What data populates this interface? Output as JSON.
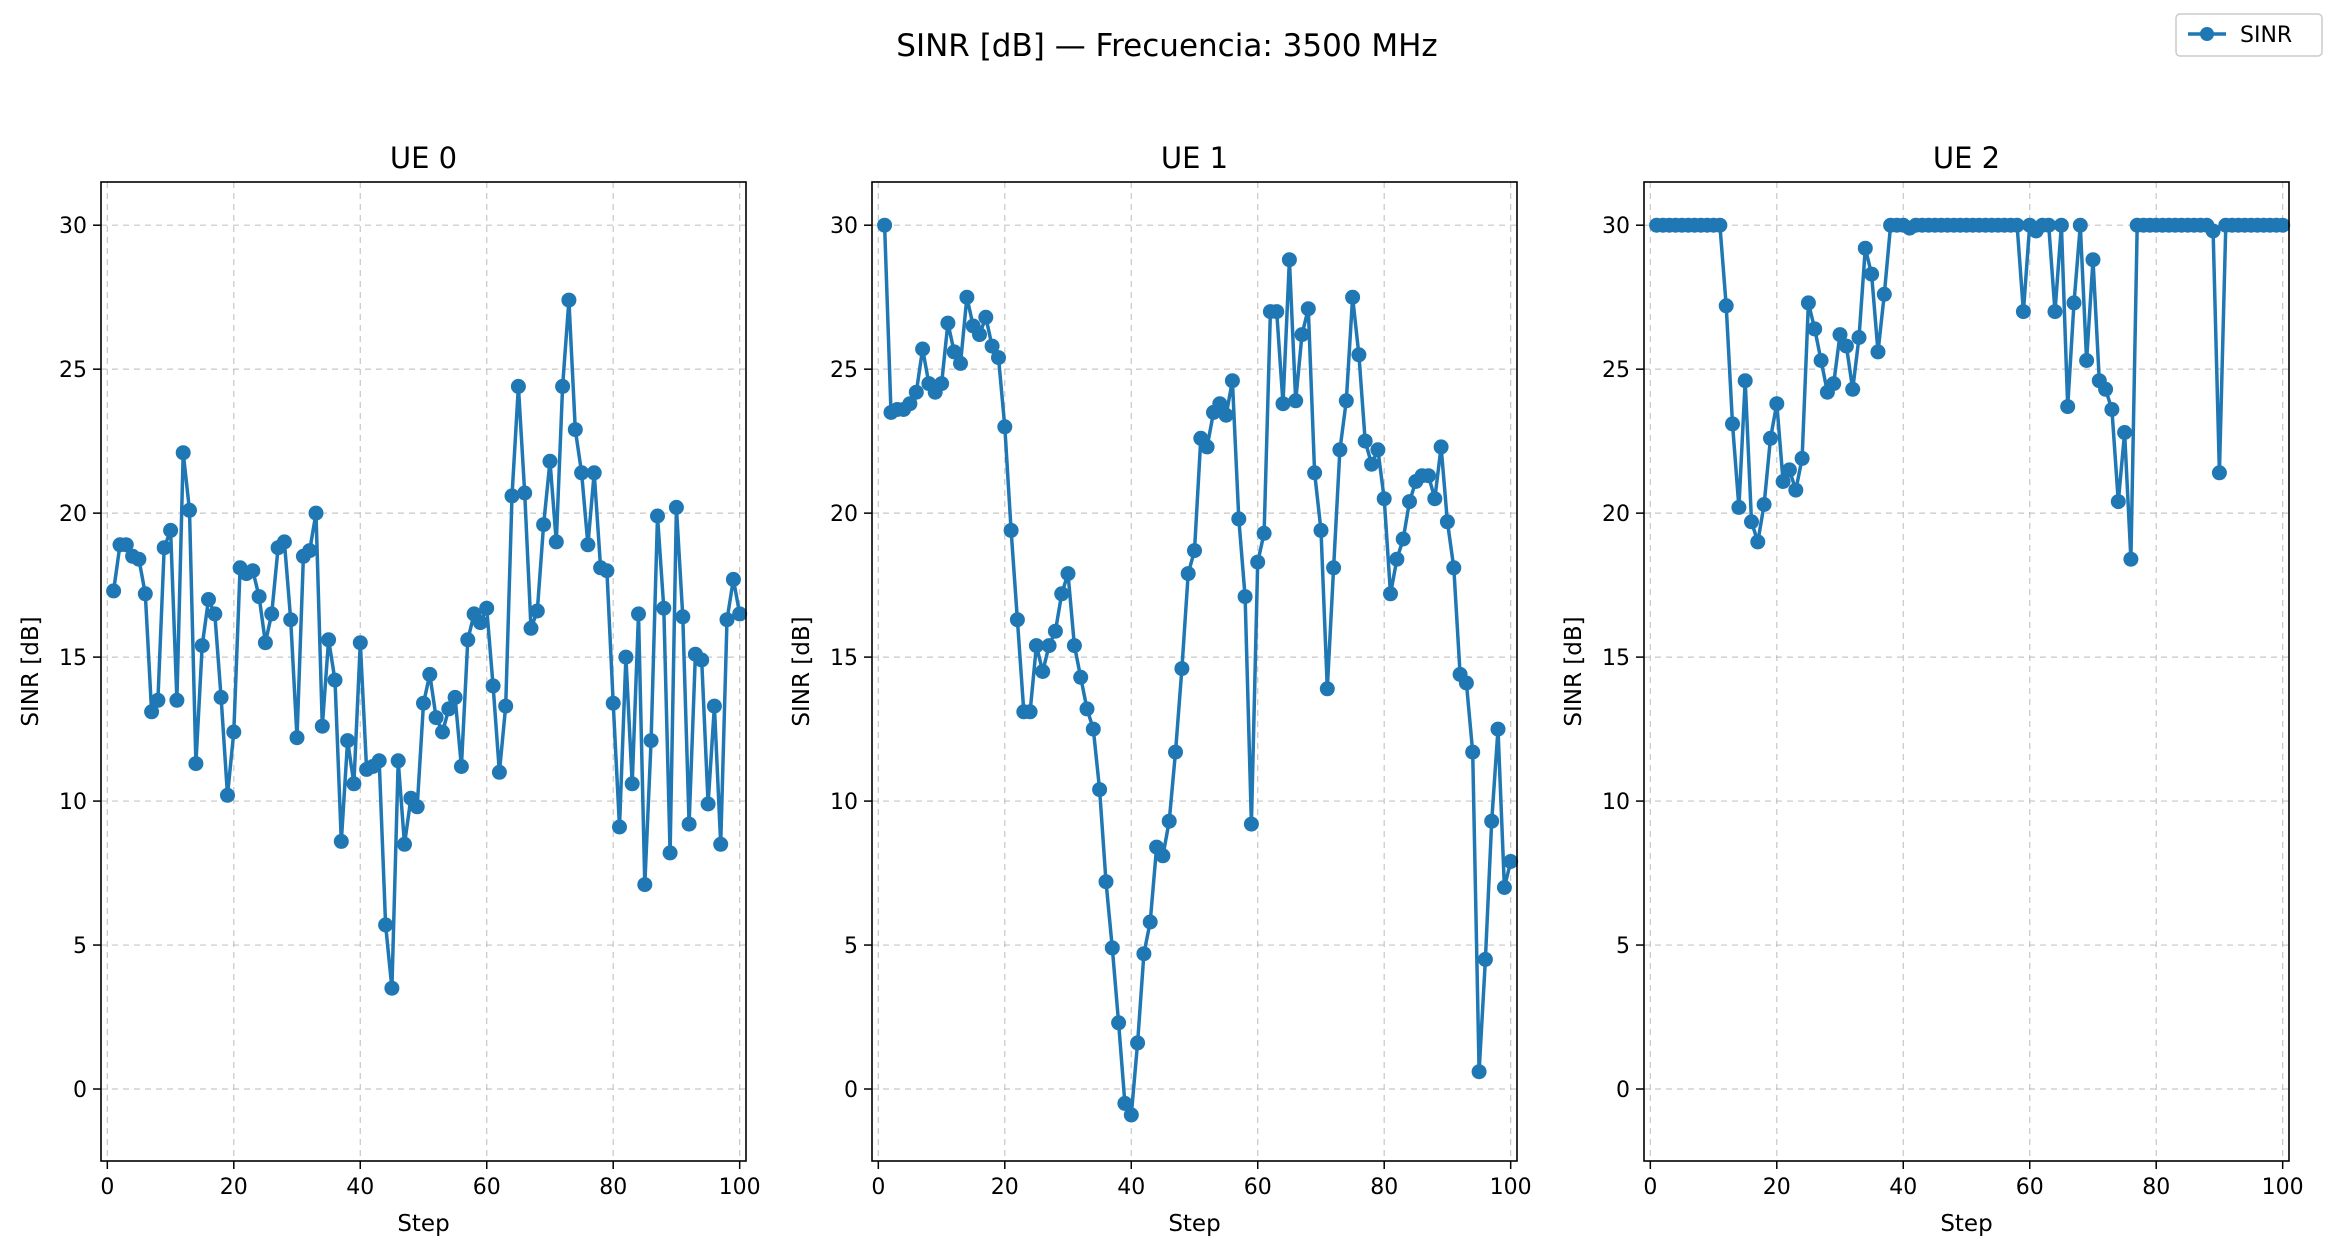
{
  "figure": {
    "title": "SINR [dB] — Frecuencia: 3500 MHz",
    "legend": {
      "label": "SINR",
      "placement": "top-right"
    },
    "line_color": "#1f77b4"
  },
  "chart_data": [
    {
      "type": "line",
      "title": "UE 0",
      "xlabel": "Step",
      "ylabel": "SINR [dB]",
      "xlim": [
        -1,
        101
      ],
      "ylim": [
        -2.5,
        31.5
      ],
      "xticks": [
        0,
        20,
        40,
        60,
        80,
        100
      ],
      "yticks": [
        0,
        5,
        10,
        15,
        20,
        25,
        30
      ],
      "grid": true,
      "series": [
        {
          "name": "SINR",
          "x": [
            1,
            2,
            3,
            4,
            5,
            6,
            7,
            8,
            9,
            10,
            11,
            12,
            13,
            14,
            15,
            16,
            17,
            18,
            19,
            20,
            21,
            22,
            23,
            24,
            25,
            26,
            27,
            28,
            29,
            30,
            31,
            32,
            33,
            34,
            35,
            36,
            37,
            38,
            39,
            40,
            41,
            42,
            43,
            44,
            45,
            46,
            47,
            48,
            49,
            50,
            51,
            52,
            53,
            54,
            55,
            56,
            57,
            58,
            59,
            60,
            61,
            62,
            63,
            64,
            65,
            66,
            67,
            68,
            69,
            70,
            71,
            72,
            73,
            74,
            75,
            76,
            77,
            78,
            79,
            80,
            81,
            82,
            83,
            84,
            85,
            86,
            87,
            88,
            89,
            90,
            91,
            92,
            93,
            94,
            95,
            96,
            97,
            98,
            99,
            100
          ],
          "y": [
            17.3,
            18.9,
            18.9,
            18.5,
            18.4,
            17.2,
            13.1,
            13.5,
            18.8,
            19.4,
            13.5,
            22.1,
            20.1,
            11.3,
            15.4,
            17.0,
            16.5,
            13.6,
            10.2,
            12.4,
            18.1,
            17.9,
            18.0,
            17.1,
            15.5,
            16.5,
            18.8,
            19.0,
            16.3,
            12.2,
            18.5,
            18.7,
            20.0,
            12.6,
            15.6,
            14.2,
            8.6,
            12.1,
            10.6,
            15.5,
            11.1,
            11.2,
            11.4,
            5.7,
            3.5,
            11.4,
            8.5,
            10.1,
            9.8,
            13.4,
            14.4,
            12.9,
            12.4,
            13.2,
            13.6,
            11.2,
            15.6,
            16.5,
            16.2,
            16.7,
            14.0,
            11.0,
            13.3,
            20.6,
            24.4,
            20.7,
            16.0,
            16.6,
            19.6,
            21.8,
            19.0,
            24.4,
            27.4,
            22.9,
            21.4,
            18.9,
            21.4,
            18.1,
            18.0,
            13.4,
            9.1,
            15.0,
            10.6,
            16.5,
            7.1,
            12.1,
            19.9,
            16.7,
            8.2,
            20.2,
            16.4,
            9.2,
            15.1,
            14.9,
            9.9,
            13.3,
            8.5,
            16.3,
            17.7,
            16.5
          ]
        }
      ]
    },
    {
      "type": "line",
      "title": "UE 1",
      "xlabel": "Step",
      "ylabel": "SINR [dB]",
      "xlim": [
        -1,
        101
      ],
      "ylim": [
        -2.5,
        31.5
      ],
      "xticks": [
        0,
        20,
        40,
        60,
        80,
        100
      ],
      "yticks": [
        0,
        5,
        10,
        15,
        20,
        25,
        30
      ],
      "grid": true,
      "series": [
        {
          "name": "SINR",
          "x": [
            1,
            2,
            3,
            4,
            5,
            6,
            7,
            8,
            9,
            10,
            11,
            12,
            13,
            14,
            15,
            16,
            17,
            18,
            19,
            20,
            21,
            22,
            23,
            24,
            25,
            26,
            27,
            28,
            29,
            30,
            31,
            32,
            33,
            34,
            35,
            36,
            37,
            38,
            39,
            40,
            41,
            42,
            43,
            44,
            45,
            46,
            47,
            48,
            49,
            50,
            51,
            52,
            53,
            54,
            55,
            56,
            57,
            58,
            59,
            60,
            61,
            62,
            63,
            64,
            65,
            66,
            67,
            68,
            69,
            70,
            71,
            72,
            73,
            74,
            75,
            76,
            77,
            78,
            79,
            80,
            81,
            82,
            83,
            84,
            85,
            86,
            87,
            88,
            89,
            90,
            91,
            92,
            93,
            94,
            95,
            96,
            97,
            98,
            99,
            100
          ],
          "y": [
            30.0,
            23.5,
            23.6,
            23.6,
            23.8,
            24.2,
            25.7,
            24.5,
            24.2,
            24.5,
            26.6,
            25.6,
            25.2,
            27.5,
            26.5,
            26.2,
            26.8,
            25.8,
            25.4,
            23.0,
            19.4,
            16.3,
            13.1,
            13.1,
            15.4,
            14.5,
            15.4,
            15.9,
            17.2,
            17.9,
            15.4,
            14.3,
            13.2,
            12.5,
            10.4,
            7.2,
            4.9,
            2.3,
            -0.5,
            -0.9,
            1.6,
            4.7,
            5.8,
            8.4,
            8.1,
            9.3,
            11.7,
            14.6,
            17.9,
            18.7,
            22.6,
            22.3,
            23.5,
            23.8,
            23.4,
            24.6,
            19.8,
            17.1,
            9.2,
            18.3,
            19.3,
            27.0,
            27.0,
            23.8,
            28.8,
            23.9,
            26.2,
            27.1,
            21.4,
            19.4,
            13.9,
            18.1,
            22.2,
            23.9,
            27.5,
            25.5,
            22.5,
            21.7,
            22.2,
            20.5,
            17.2,
            18.4,
            19.1,
            20.4,
            21.1,
            21.3,
            21.3,
            20.5,
            22.3,
            19.7,
            18.1,
            14.4,
            14.1,
            11.7,
            0.6,
            4.5,
            9.3,
            12.5,
            7.0,
            7.9
          ]
        }
      ]
    },
    {
      "type": "line",
      "title": "UE 2",
      "xlabel": "Step",
      "ylabel": "SINR [dB]",
      "xlim": [
        -1,
        101
      ],
      "ylim": [
        -2.5,
        31.5
      ],
      "xticks": [
        0,
        20,
        40,
        60,
        80,
        100
      ],
      "yticks": [
        0,
        5,
        10,
        15,
        20,
        25,
        30
      ],
      "grid": true,
      "series": [
        {
          "name": "SINR",
          "x": [
            1,
            2,
            3,
            4,
            5,
            6,
            7,
            8,
            9,
            10,
            11,
            12,
            13,
            14,
            15,
            16,
            17,
            18,
            19,
            20,
            21,
            22,
            23,
            24,
            25,
            26,
            27,
            28,
            29,
            30,
            31,
            32,
            33,
            34,
            35,
            36,
            37,
            38,
            39,
            40,
            41,
            42,
            43,
            44,
            45,
            46,
            47,
            48,
            49,
            50,
            51,
            52,
            53,
            54,
            55,
            56,
            57,
            58,
            59,
            60,
            61,
            62,
            63,
            64,
            65,
            66,
            67,
            68,
            69,
            70,
            71,
            72,
            73,
            74,
            75,
            76,
            77,
            78,
            79,
            80,
            81,
            82,
            83,
            84,
            85,
            86,
            87,
            88,
            89,
            90,
            91,
            92,
            93,
            94,
            95,
            96,
            97,
            98,
            99,
            100
          ],
          "y": [
            30.0,
            30.0,
            30.0,
            30.0,
            30.0,
            30.0,
            30.0,
            30.0,
            30.0,
            30.0,
            30.0,
            27.2,
            23.1,
            20.2,
            24.6,
            19.7,
            19.0,
            20.3,
            22.6,
            23.8,
            21.1,
            21.5,
            20.8,
            21.9,
            27.3,
            26.4,
            25.3,
            24.2,
            24.5,
            26.2,
            25.8,
            24.3,
            26.1,
            29.2,
            28.3,
            25.6,
            27.6,
            30.0,
            30.0,
            30.0,
            29.9,
            30.0,
            30.0,
            30.0,
            30.0,
            30.0,
            30.0,
            30.0,
            30.0,
            30.0,
            30.0,
            30.0,
            30.0,
            30.0,
            30.0,
            30.0,
            30.0,
            30.0,
            27.0,
            30.0,
            29.8,
            30.0,
            30.0,
            27.0,
            30.0,
            23.7,
            27.3,
            30.0,
            25.3,
            28.8,
            24.6,
            24.3,
            23.6,
            20.4,
            22.8,
            18.4,
            30.0,
            30.0,
            30.0,
            30.0,
            30.0,
            30.0,
            30.0,
            30.0,
            30.0,
            30.0,
            30.0,
            30.0,
            29.8,
            21.4,
            30.0,
            30.0,
            30.0,
            30.0,
            30.0,
            30.0,
            30.0,
            30.0,
            30.0,
            30.0
          ]
        }
      ]
    }
  ]
}
